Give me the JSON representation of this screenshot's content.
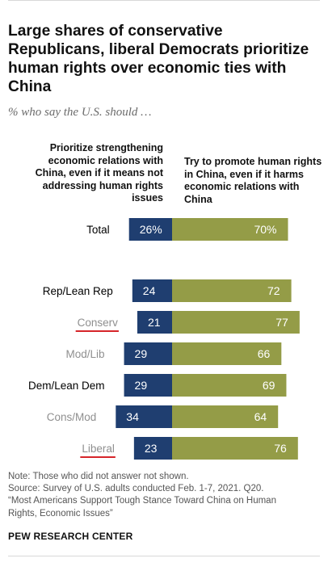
{
  "header": {
    "title": "Large shares of conservative Republicans, liberal Democrats prioritize human rights over economic ties with China",
    "subtitle": "% who say the U.S. should …"
  },
  "colors": {
    "economic": "#1f3e70",
    "human_rights": "#949c47",
    "muted_label": "#8f8f8f",
    "underline": "#d6252a"
  },
  "chart_data": {
    "type": "bar",
    "orientation": "horizontal",
    "stacked": "diverging",
    "categories": [
      "Total",
      "Rep/Lean Rep",
      "Conserv",
      "Mod/Lib",
      "Dem/Lean Dem",
      "Cons/Mod",
      "Liberal"
    ],
    "series": [
      {
        "name": "Prioritize strengthening economic relations with China, even if it means not addressing human rights issues",
        "values": [
          26,
          24,
          21,
          29,
          29,
          34,
          23
        ]
      },
      {
        "name": "Try to promote human rights in China, even if it harms economic relations with China",
        "values": [
          70,
          72,
          77,
          66,
          69,
          64,
          76
        ]
      }
    ],
    "value_labels": [
      [
        "26%",
        "70%"
      ],
      [
        "24",
        "72"
      ],
      [
        "21",
        "77"
      ],
      [
        "29",
        "66"
      ],
      [
        "29",
        "69"
      ],
      [
        "34",
        "64"
      ],
      [
        "23",
        "76"
      ]
    ],
    "label_styles": [
      "bold",
      "bold",
      "sub",
      "sub",
      "bold",
      "sub",
      "sub"
    ],
    "underlined": [
      false,
      false,
      true,
      false,
      false,
      false,
      true
    ],
    "xlim": [
      0,
      100
    ],
    "grid": false,
    "legend": "column headers above bars"
  },
  "footer": {
    "note": "Note: Those who did not answer not shown.",
    "source_1": "Source: Survey of U.S. adults conducted Feb. 1-7, 2021. Q20.",
    "source_2": "“Most Americans Support Tough Stance Toward China on Human",
    "source_3": "Rights, Economic Issues”",
    "brand": "PEW RESEARCH CENTER"
  }
}
